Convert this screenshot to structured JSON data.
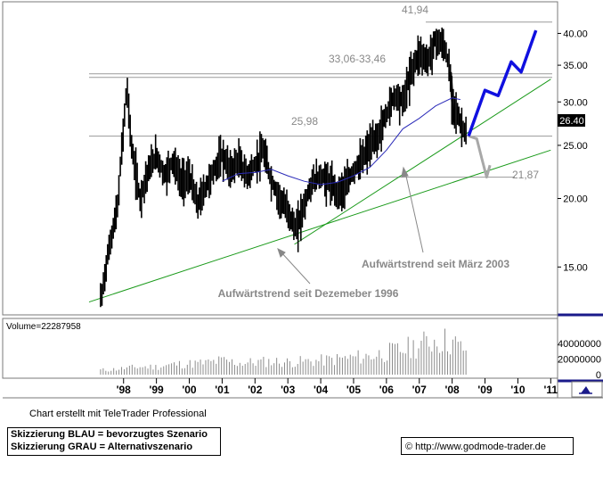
{
  "chart_data": [
    {
      "type": "candlestick",
      "panel": "price",
      "y_scale": "log",
      "ylim": [
        12.5,
        45
      ],
      "y_ticks": [
        "40.00",
        "35.00",
        "30.00",
        "25.00",
        "20.00",
        "15.00"
      ],
      "x_ticks": [
        "'98",
        "'99",
        "'00",
        "'01",
        "'02",
        "'03",
        "'04",
        "'05",
        "'06",
        "'07",
        "'08",
        "'09",
        "'10",
        "'11"
      ],
      "last_price": "26.40",
      "ohlc_approx": [
        {
          "x": 1997.33,
          "close": 13.2
        },
        {
          "x": 1997.5,
          "close": 15.5
        },
        {
          "x": 1997.67,
          "close": 17.5
        },
        {
          "x": 1997.83,
          "close": 19.5
        },
        {
          "x": 1998.0,
          "close": 27.0
        },
        {
          "x": 1998.1,
          "close": 32.0
        },
        {
          "x": 1998.25,
          "close": 24.5
        },
        {
          "x": 1998.5,
          "close": 20.0
        },
        {
          "x": 1998.75,
          "close": 22.5
        },
        {
          "x": 1999.0,
          "close": 24.0
        },
        {
          "x": 1999.25,
          "close": 22.0
        },
        {
          "x": 1999.5,
          "close": 23.5
        },
        {
          "x": 1999.75,
          "close": 21.5
        },
        {
          "x": 2000.0,
          "close": 22.0
        },
        {
          "x": 2000.25,
          "close": 19.5
        },
        {
          "x": 2000.5,
          "close": 21.0
        },
        {
          "x": 2000.75,
          "close": 22.5
        },
        {
          "x": 2001.0,
          "close": 24.0
        },
        {
          "x": 2001.25,
          "close": 22.5
        },
        {
          "x": 2001.5,
          "close": 23.5
        },
        {
          "x": 2001.75,
          "close": 22.0
        },
        {
          "x": 2002.0,
          "close": 23.0
        },
        {
          "x": 2002.25,
          "close": 24.5
        },
        {
          "x": 2002.5,
          "close": 21.5
        },
        {
          "x": 2002.75,
          "close": 20.0
        },
        {
          "x": 2003.0,
          "close": 19.0
        },
        {
          "x": 2003.25,
          "close": 17.5
        },
        {
          "x": 2003.5,
          "close": 19.5
        },
        {
          "x": 2003.75,
          "close": 21.5
        },
        {
          "x": 2004.0,
          "close": 22.0
        },
        {
          "x": 2004.25,
          "close": 21.5
        },
        {
          "x": 2004.5,
          "close": 20.5
        },
        {
          "x": 2004.75,
          "close": 21.0
        },
        {
          "x": 2005.0,
          "close": 22.5
        },
        {
          "x": 2005.25,
          "close": 23.5
        },
        {
          "x": 2005.5,
          "close": 25.0
        },
        {
          "x": 2005.75,
          "close": 26.0
        },
        {
          "x": 2006.0,
          "close": 28.5
        },
        {
          "x": 2006.25,
          "close": 31.0
        },
        {
          "x": 2006.5,
          "close": 30.0
        },
        {
          "x": 2006.75,
          "close": 34.0
        },
        {
          "x": 2007.0,
          "close": 37.0
        },
        {
          "x": 2007.25,
          "close": 35.5
        },
        {
          "x": 2007.5,
          "close": 39.0
        },
        {
          "x": 2007.75,
          "close": 38.0
        },
        {
          "x": 2007.9,
          "close": 35.0
        },
        {
          "x": 2008.0,
          "close": 30.5
        },
        {
          "x": 2008.15,
          "close": 28.5
        },
        {
          "x": 2008.3,
          "close": 27.0
        },
        {
          "x": 2008.42,
          "close": 26.4
        }
      ],
      "moving_average": [
        {
          "x": 2001.0,
          "y": 21.5
        },
        {
          "x": 2001.5,
          "y": 22.2
        },
        {
          "x": 2002.0,
          "y": 22.3
        },
        {
          "x": 2002.5,
          "y": 22.6
        },
        {
          "x": 2003.0,
          "y": 22.0
        },
        {
          "x": 2003.5,
          "y": 21.5
        },
        {
          "x": 2004.0,
          "y": 21.2
        },
        {
          "x": 2004.5,
          "y": 21.4
        },
        {
          "x": 2005.0,
          "y": 22.0
        },
        {
          "x": 2005.5,
          "y": 22.8
        },
        {
          "x": 2006.0,
          "y": 24.5
        },
        {
          "x": 2006.5,
          "y": 26.8
        },
        {
          "x": 2007.0,
          "y": 28.0
        },
        {
          "x": 2007.5,
          "y": 29.5
        },
        {
          "x": 2008.0,
          "y": 30.5
        },
        {
          "x": 2008.25,
          "y": 30.3
        }
      ],
      "horizontal_levels": [
        {
          "label": "41,94",
          "value": 41.94
        },
        {
          "label": "33,06-33,46",
          "value": 33.26
        },
        {
          "label": "25,98",
          "value": 25.98
        },
        {
          "label": "21,87",
          "value": 21.87
        }
      ],
      "trendlines": [
        {
          "label": "Aufwärtstrend seit Dezemeber 1996",
          "from": {
            "x": 1996.95,
            "y": 12.95
          },
          "to": {
            "x": 2011.0,
            "y": 24.5
          }
        },
        {
          "label": "Aufwärtstrend seit März 2003",
          "from": {
            "x": 2003.2,
            "y": 16.5
          },
          "to": {
            "x": 2011.0,
            "y": 33.0
          }
        }
      ],
      "scenario_blue": [
        {
          "x": 2008.5,
          "y": 26.0
        },
        {
          "x": 2009.0,
          "y": 31.5
        },
        {
          "x": 2009.4,
          "y": 30.8
        },
        {
          "x": 2009.8,
          "y": 35.5
        },
        {
          "x": 2010.1,
          "y": 34.0
        },
        {
          "x": 2010.55,
          "y": 40.5
        }
      ],
      "scenario_grey": [
        {
          "x": 2008.5,
          "y": 26.0
        },
        {
          "x": 2008.75,
          "y": 25.7
        },
        {
          "x": 2008.9,
          "y": 23.7
        },
        {
          "x": 2009.05,
          "y": 21.87
        },
        {
          "x": 2009.15,
          "y": 23.0
        }
      ]
    },
    {
      "type": "bar",
      "panel": "volume",
      "label": "Volume=22287958",
      "y_ticks": [
        "40000000",
        "20000000",
        "0"
      ],
      "ylim": [
        0,
        55000000
      ],
      "x": [
        1997.5,
        1998.0,
        1998.5,
        1999.0,
        1999.5,
        2000.0,
        2000.5,
        2001.0,
        2001.5,
        2002.0,
        2002.5,
        2003.0,
        2003.5,
        2004.0,
        2004.5,
        2005.0,
        2005.5,
        2006.0,
        2006.5,
        2007.0,
        2007.5,
        2008.0,
        2008.25
      ],
      "values": [
        6000000,
        8000000,
        10000000,
        10000000,
        13000000,
        14000000,
        15000000,
        18000000,
        15000000,
        16000000,
        17000000,
        16000000,
        17000000,
        18000000,
        20000000,
        22000000,
        24000000,
        28000000,
        32000000,
        38000000,
        45000000,
        42000000,
        34000000
      ]
    }
  ],
  "annotations": {
    "high_label": "41,94",
    "resistance_label": "33,06-33,46",
    "support_label": "25,98",
    "target_label": "21,87",
    "trend_2003_label": "Aufwärtstrend seit März 2003",
    "trend_1996_label": "Aufwärtstrend seit Dezemeber 1996"
  },
  "footer": {
    "credit": "Chart erstellt mit TeleTrader Professional",
    "scenario_blue": "Skizzierung BLAU = bevorzugtes Szenario",
    "scenario_grey": "Skizzierung GRAU = Alternativszenario",
    "copyright": "© http://www.godmode-trader.de"
  },
  "colors": {
    "price": "#000000",
    "moving_average": "#2a2ab8",
    "trendline": "#1a9a1a",
    "level_line": "#9a9a9a",
    "scenario_blue": "#1010e0",
    "scenario_grey": "#a8a8a8",
    "annotation_text": "#888888",
    "last_price_bg": "#000000",
    "volume_bar": "#8c8c8c",
    "border": "#1a1a8a"
  },
  "icons": {
    "corner": "chart-tool-icon"
  }
}
